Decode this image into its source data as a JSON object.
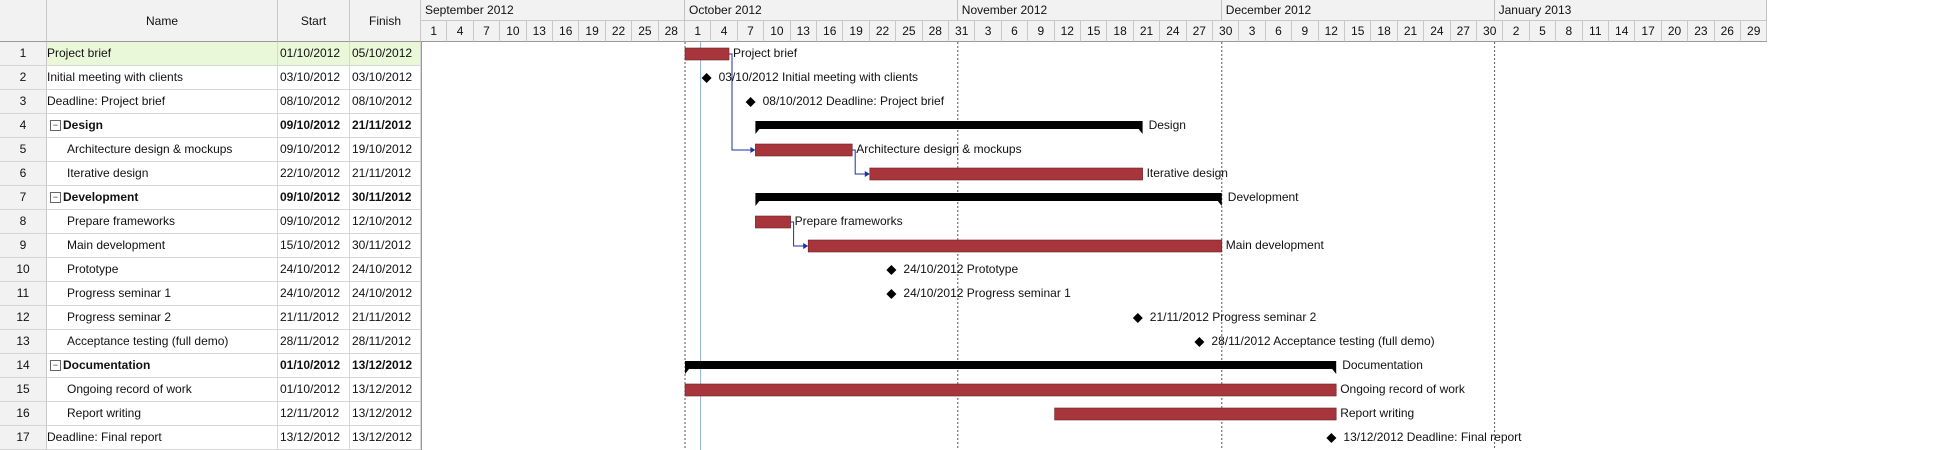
{
  "columns": {
    "id": "",
    "name": "Name",
    "start": "Start",
    "finish": "Finish"
  },
  "timeline": {
    "months": [
      "September 2012",
      "October 2012",
      "November 2012",
      "December 2012",
      "January 2013"
    ],
    "ticks": [
      "1",
      "4",
      "7",
      "10",
      "13",
      "16",
      "19",
      "22",
      "25",
      "28",
      "1",
      "4",
      "7",
      "10",
      "13",
      "16",
      "19",
      "22",
      "25",
      "28",
      "31",
      "3",
      "6",
      "9",
      "12",
      "15",
      "18",
      "21",
      "24",
      "27",
      "30",
      "3",
      "6",
      "9",
      "12",
      "15",
      "18",
      "21",
      "24",
      "27",
      "30",
      "2",
      "5",
      "8",
      "11",
      "14",
      "17",
      "20",
      "23",
      "26",
      "29"
    ]
  },
  "colors": {
    "bar": "#a8353b",
    "summary": "#000000",
    "milestone": "#000000",
    "link": "#1f2fa3",
    "selected_row": "#e8f8d8"
  },
  "tasks": [
    {
      "id": "1",
      "name": "Project brief",
      "start": "01/10/2012",
      "finish": "05/10/2012",
      "type": "task",
      "level": 0,
      "selected": true,
      "bar_label": "Project brief"
    },
    {
      "id": "2",
      "name": "Initial meeting with clients",
      "start": "03/10/2012",
      "finish": "03/10/2012",
      "type": "milestone",
      "level": 0,
      "bar_label": "03/10/2012 Initial meeting with clients"
    },
    {
      "id": "3",
      "name": "Deadline: Project brief",
      "start": "08/10/2012",
      "finish": "08/10/2012",
      "type": "milestone",
      "level": 0,
      "bar_label": "08/10/2012 Deadline: Project brief"
    },
    {
      "id": "4",
      "name": "Design",
      "start": "09/10/2012",
      "finish": "21/11/2012",
      "type": "summary",
      "level": 0,
      "bar_label": "Design"
    },
    {
      "id": "5",
      "name": "Architecture design & mockups",
      "start": "09/10/2012",
      "finish": "19/10/2012",
      "type": "task",
      "level": 1,
      "bar_label": "Architecture design & mockups"
    },
    {
      "id": "6",
      "name": "Iterative design",
      "start": "22/10/2012",
      "finish": "21/11/2012",
      "type": "task",
      "level": 1,
      "bar_label": "Iterative design"
    },
    {
      "id": "7",
      "name": "Development",
      "start": "09/10/2012",
      "finish": "30/11/2012",
      "type": "summary",
      "level": 0,
      "bar_label": "Development"
    },
    {
      "id": "8",
      "name": "Prepare frameworks",
      "start": "09/10/2012",
      "finish": "12/10/2012",
      "type": "task",
      "level": 1,
      "bar_label": "Prepare frameworks"
    },
    {
      "id": "9",
      "name": "Main development",
      "start": "15/10/2012",
      "finish": "30/11/2012",
      "type": "task",
      "level": 1,
      "bar_label": "Main development"
    },
    {
      "id": "10",
      "name": "Prototype",
      "start": "24/10/2012",
      "finish": "24/10/2012",
      "type": "milestone",
      "level": 1,
      "bar_label": "24/10/2012 Prototype"
    },
    {
      "id": "11",
      "name": "Progress seminar 1",
      "start": "24/10/2012",
      "finish": "24/10/2012",
      "type": "milestone",
      "level": 1,
      "bar_label": "24/10/2012 Progress seminar 1"
    },
    {
      "id": "12",
      "name": "Progress seminar 2",
      "start": "21/11/2012",
      "finish": "21/11/2012",
      "type": "milestone",
      "level": 1,
      "bar_label": "21/11/2012 Progress seminar 2"
    },
    {
      "id": "13",
      "name": "Acceptance testing (full demo)",
      "start": "28/11/2012",
      "finish": "28/11/2012",
      "type": "milestone",
      "level": 1,
      "bar_label": "28/11/2012 Acceptance testing (full demo)"
    },
    {
      "id": "14",
      "name": "Documentation",
      "start": "01/10/2012",
      "finish": "13/12/2012",
      "type": "summary",
      "level": 0,
      "bar_label": "Documentation"
    },
    {
      "id": "15",
      "name": "Ongoing record of work",
      "start": "01/10/2012",
      "finish": "13/12/2012",
      "type": "task",
      "level": 1,
      "bar_label": "Ongoing record of work"
    },
    {
      "id": "16",
      "name": "Report writing",
      "start": "12/11/2012",
      "finish": "13/12/2012",
      "type": "task",
      "level": 1,
      "bar_label": "Report writing"
    },
    {
      "id": "17",
      "name": "Deadline: Final report",
      "start": "13/12/2012",
      "finish": "13/12/2012",
      "type": "milestone",
      "level": 0,
      "bar_label": "13/12/2012 Deadline: Final report"
    }
  ]
}
